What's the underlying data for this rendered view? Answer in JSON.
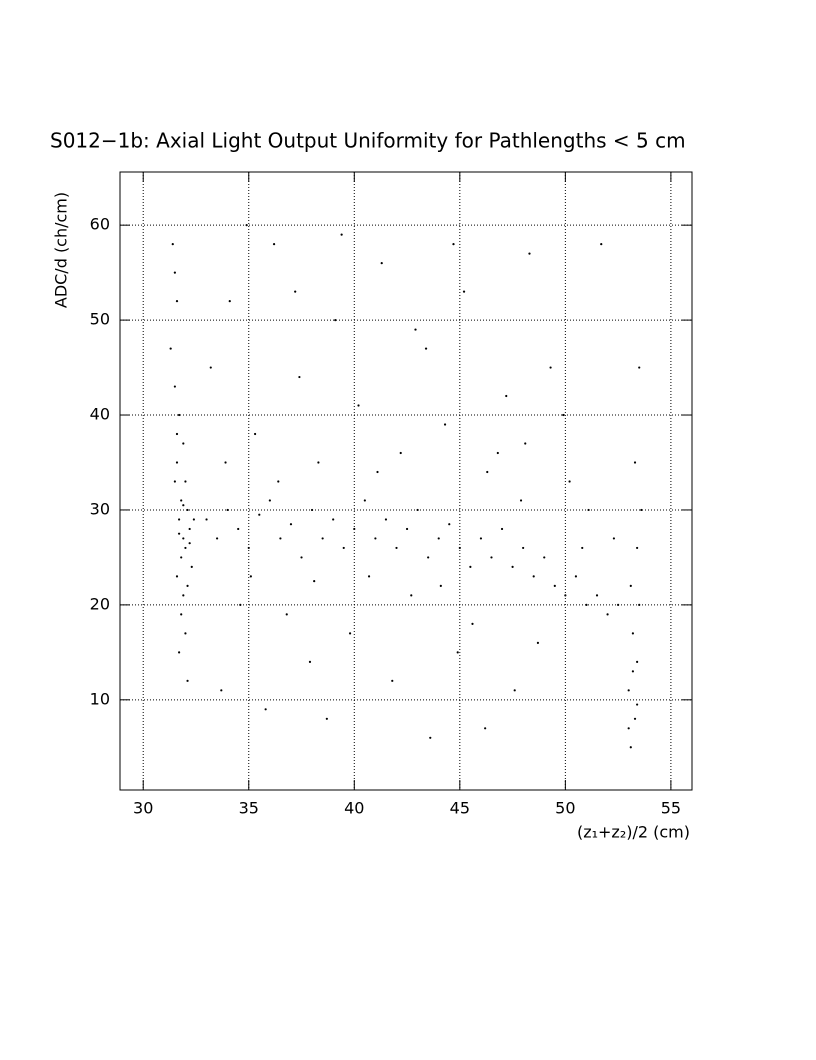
{
  "chart_data": {
    "type": "scatter",
    "title": "S012−1b: Axial Light Output Uniformity for Pathlengths < 5 cm",
    "x_label": "(z₁+z₂)/2 (cm)",
    "y_label": "ADC/d (ch/cm)",
    "xlim": [
      28.9,
      56.0
    ],
    "ylim": [
      0.5,
      65.6
    ],
    "xticks": [
      30,
      35,
      40,
      45,
      50,
      55
    ],
    "yticks": [
      10,
      20,
      30,
      40,
      50,
      60
    ],
    "grid": true,
    "color": "#000000",
    "x": [
      31.4,
      31.6,
      31.3,
      31.5,
      31.7,
      31.9,
      31.6,
      32.0,
      31.8,
      32.1,
      31.7,
      32.2,
      31.9,
      32.0,
      31.8,
      32.3,
      31.6,
      32.1,
      31.9,
      31.8,
      32.0,
      31.7,
      32.1,
      31.5,
      31.7,
      32.4,
      31.9,
      32.2,
      31.6,
      31.5,
      33,
      33.5,
      34,
      34.5,
      35,
      35.5,
      36,
      36.5,
      37,
      37.5,
      38,
      38.5,
      39,
      39.5,
      40,
      40.5,
      41,
      41.5,
      42,
      42.5,
      43,
      43.5,
      44,
      44.5,
      45,
      45.5,
      46,
      46.5,
      47,
      47.5,
      48,
      48.5,
      49,
      49.5,
      50,
      50.5,
      51,
      51.5,
      52,
      52.5,
      33.2,
      34.1,
      35.3,
      36.2,
      37.4,
      38.3,
      39.1,
      40.2,
      41.3,
      42.2,
      43.4,
      44.3,
      45.2,
      46.3,
      47.2,
      48.1,
      49.3,
      50.2,
      51.1,
      52.3,
      36.8,
      39.8,
      42.7,
      45.6,
      48.7,
      34.6,
      37.9,
      41.8,
      44.9,
      47.6,
      35.8,
      38.7,
      43.6,
      46.2,
      33.7,
      40.7,
      44.1,
      38.1,
      35.1,
      47.9,
      50.8,
      33.9,
      36.4,
      41.1,
      46.8,
      39.4,
      44.7,
      48.3,
      51.7,
      34.9,
      42.9,
      37.2,
      49.9,
      53.1,
      53.3,
      53.0,
      53.4,
      53.2,
      53.5,
      53.1,
      53.4,
      53.6,
      53.3,
      53.5,
      53.2,
      53.0,
      53.4
    ],
    "y": [
      58,
      52,
      47,
      43,
      40,
      37,
      35,
      33,
      31,
      30,
      29,
      28,
      27,
      26,
      25,
      24,
      23,
      22,
      21,
      19,
      17,
      15,
      12,
      33,
      27.5,
      29,
      30.5,
      26.5,
      38,
      55,
      29,
      27,
      30,
      28,
      26,
      29.5,
      31,
      27,
      28.5,
      25,
      30,
      27,
      29,
      26,
      28,
      31,
      27,
      29,
      26,
      28,
      30,
      25,
      27,
      28.5,
      26,
      24,
      27,
      25,
      28,
      24,
      26,
      23,
      25,
      22,
      21,
      23,
      20,
      21,
      19,
      20,
      45,
      52,
      38,
      58,
      44,
      35,
      50,
      41,
      56,
      36,
      47,
      39,
      53,
      34,
      42,
      37,
      45,
      33,
      30,
      27,
      19,
      17,
      21,
      18,
      16,
      20,
      14,
      12,
      15,
      11,
      9,
      8,
      6,
      7,
      11,
      23,
      22,
      22.5,
      23,
      31,
      26,
      35,
      33,
      34,
      36,
      59,
      58,
      57,
      58,
      60,
      49,
      53,
      40,
      5,
      8,
      11,
      14,
      17,
      20,
      22,
      26,
      30,
      35,
      45,
      13,
      7,
      9.5
    ]
  }
}
